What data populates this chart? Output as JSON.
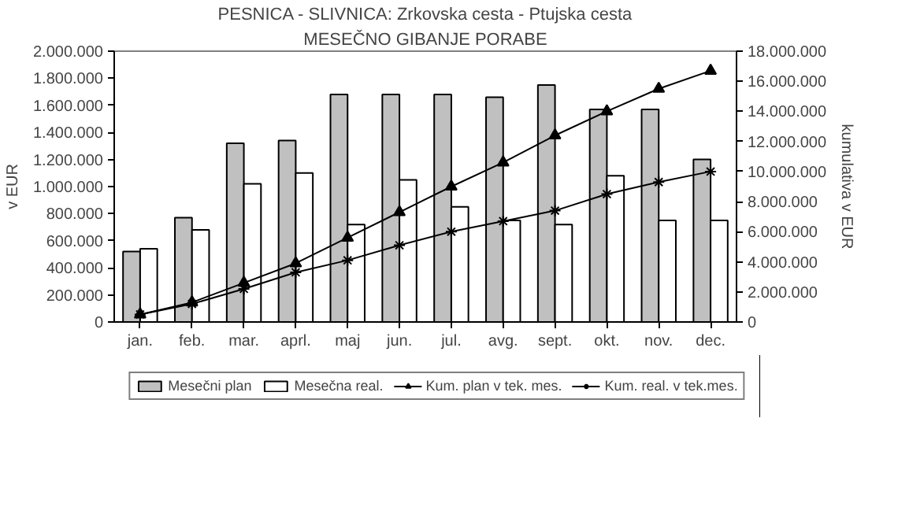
{
  "chart_data": {
    "type": "bar",
    "title": "PESNICA - SLIVNICA: Zrkovska cesta - Ptujska cesta",
    "subtitle": "MESEČNO GIBANJE PORABE",
    "ylabel": "v EUR",
    "y2label": "kumulativa v EUR",
    "categories": [
      "jan.",
      "feb.",
      "mar.",
      "aprl.",
      "maj",
      "jun.",
      "jul.",
      "avg.",
      "sept.",
      "okt.",
      "nov.",
      "dec."
    ],
    "series": [
      {
        "name": "Mesečni plan",
        "color": "#c0c0c0",
        "values": [
          520000,
          770000,
          1320000,
          1340000,
          1680000,
          1680000,
          1680000,
          1660000,
          1750000,
          1570000,
          1570000,
          1200000
        ]
      },
      {
        "name": "Mesečna real.",
        "color": "#ffffff",
        "values": [
          540000,
          680000,
          1020000,
          1100000,
          720000,
          1050000,
          850000,
          750000,
          720000,
          1080000,
          750000,
          750000
        ]
      },
      {
        "name": "Kum. plan v tek. mes.",
        "type": "line",
        "axis": "y2",
        "marker": "triangle",
        "color": "#000000",
        "values": [
          500000,
          1300000,
          2600000,
          3900000,
          5600000,
          7300000,
          9000000,
          10600000,
          12400000,
          14000000,
          15500000,
          16700000
        ]
      },
      {
        "name": "Kum. real. v tek.mes.",
        "type": "line",
        "axis": "y2",
        "marker": "cross",
        "color": "#000000",
        "values": [
          500000,
          1200000,
          2200000,
          3300000,
          4100000,
          5100000,
          6000000,
          6700000,
          7400000,
          8500000,
          9300000,
          10000000
        ]
      }
    ],
    "ylim": [
      0,
      2000000
    ],
    "yticks": [
      0,
      {
        "value": 200000,
        "label": "200.000"
      },
      {
        "value": 400000,
        "label": "400.000"
      },
      {
        "value": 600000,
        "label": "600.000"
      },
      {
        "value": 800000,
        "label": "800.000"
      },
      {
        "value": 1000000,
        "label": "1.000.000"
      },
      {
        "value": 1200000,
        "label": "1.200.000"
      },
      {
        "value": 1400000,
        "label": "1.400.000"
      },
      {
        "value": 1600000,
        "label": "1.600.000"
      },
      {
        "value": 1800000,
        "label": "1.800.000"
      },
      {
        "value": 2000000,
        "label": "2.000.000"
      }
    ],
    "y2lim": [
      0,
      18000000
    ],
    "y2ticks": [
      0,
      {
        "value": 2000000,
        "label": "2.000.000"
      },
      {
        "value": 4000000,
        "label": "4.000.000"
      },
      {
        "value": 6000000,
        "label": "6.000.000"
      },
      {
        "value": 8000000,
        "label": "8.000.000"
      },
      {
        "value": 10000000,
        "label": "10.000.000"
      },
      {
        "value": 12000000,
        "label": "12.000.000"
      },
      {
        "value": 14000000,
        "label": "14.000.000"
      },
      {
        "value": 16000000,
        "label": "16.000.000"
      },
      {
        "value": 18000000,
        "label": "18.000.000"
      }
    ],
    "grid": false,
    "legend": "bottom"
  }
}
